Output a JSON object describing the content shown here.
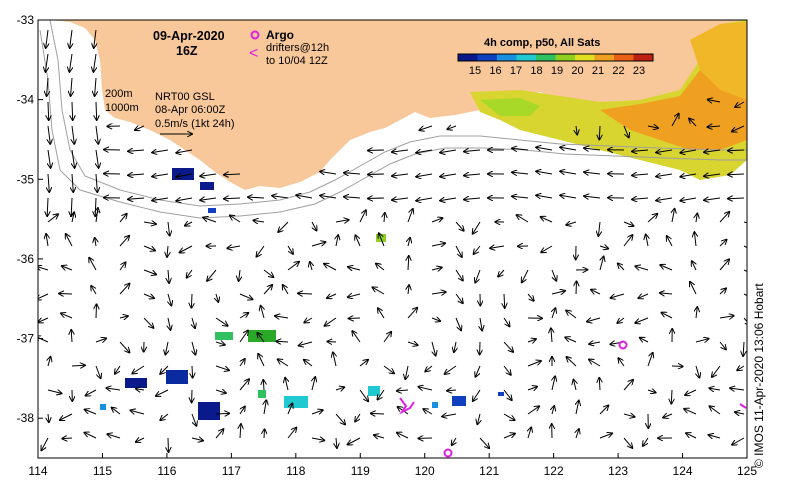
{
  "title": {
    "date": "09-Apr-2020",
    "time": "16Z"
  },
  "argo_legend": {
    "label": "Argo",
    "drifter_line1": "drifters@12h",
    "drifter_line2": "to 10/04 12Z",
    "marker_color": "#e020e0"
  },
  "isobaths": {
    "depth1": "200m",
    "depth2": "1000m"
  },
  "current_info": {
    "line1": "NRT00 GSL",
    "line2": "08-Apr 06:00Z",
    "line3": "0.5m/s (1kt 24h)"
  },
  "colorbar": {
    "title": "4h comp, p50, All Sats",
    "ticks": [
      "15",
      "16",
      "17",
      "18",
      "19",
      "20",
      "21",
      "22",
      "23"
    ],
    "colors": [
      "#0a1a8a",
      "#1040c0",
      "#1890e0",
      "#20c8d0",
      "#30c060",
      "#90d020",
      "#e0e020",
      "#f0a020",
      "#e86018",
      "#c02010"
    ]
  },
  "axes": {
    "x_ticks": [
      "114",
      "115",
      "116",
      "117",
      "118",
      "119",
      "120",
      "121",
      "122",
      "123",
      "124",
      "125"
    ],
    "y_ticks": [
      "-33",
      "-34",
      "-35",
      "-36",
      "-37",
      "-38"
    ],
    "x_range": [
      114,
      125
    ],
    "y_range": [
      -38.5,
      -33
    ]
  },
  "argo_floats": [
    {
      "lon": 123.05,
      "lat": -37.08
    },
    {
      "lon": 120.35,
      "lat": -38.44
    }
  ],
  "drifters": [
    {
      "lon": 119.7,
      "lat": -37.85
    },
    {
      "lon": 124.95,
      "lat": -37.88
    }
  ],
  "land_color": "#f8c89a",
  "credit": "© IMOS 11-Apr-2020 13:06 Hobart"
}
